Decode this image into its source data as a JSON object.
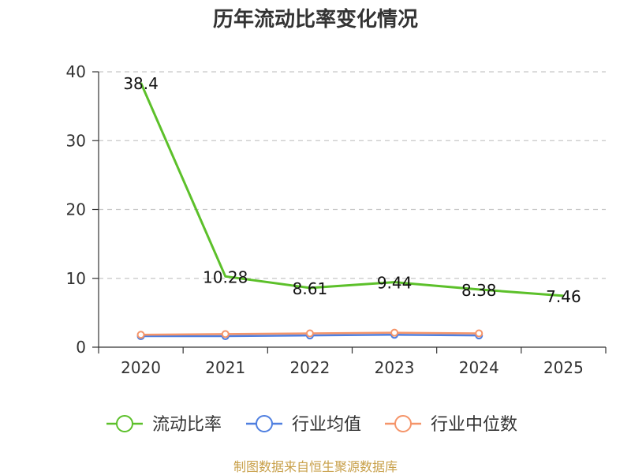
{
  "colors": {
    "current_ratio": "#5cc02a",
    "industry_mean": "#4f7fe0",
    "industry_median": "#f5956a",
    "grid": "#c8c8c8",
    "axis": "#333333",
    "source": "#c8a04a"
  },
  "chart_data": {
    "type": "line",
    "title": "历年流动比率变化情况",
    "x": [
      "2020",
      "2021",
      "2022",
      "2023",
      "2024",
      "2025"
    ],
    "ylim": [
      0,
      40
    ],
    "yticks": [
      0,
      10,
      20,
      30,
      40
    ],
    "grid": true,
    "legend_position": "bottom",
    "series": [
      {
        "name": "流动比率",
        "key": "current_ratio",
        "values": [
          38.4,
          10.28,
          8.61,
          9.44,
          8.38,
          7.46
        ],
        "labels": [
          "38.4",
          "10.28",
          "8.61",
          "9.44",
          "8.38",
          "7.46"
        ],
        "show_markers": false
      },
      {
        "name": "行业均值",
        "key": "industry_mean",
        "values": [
          1.6,
          1.6,
          1.7,
          1.8,
          1.7,
          null
        ],
        "show_markers": true
      },
      {
        "name": "行业中位数",
        "key": "industry_median",
        "values": [
          1.8,
          1.9,
          2.0,
          2.1,
          2.0,
          null
        ],
        "show_markers": true
      }
    ]
  },
  "footer": {
    "source": "制图数据来自恒生聚源数据库"
  }
}
